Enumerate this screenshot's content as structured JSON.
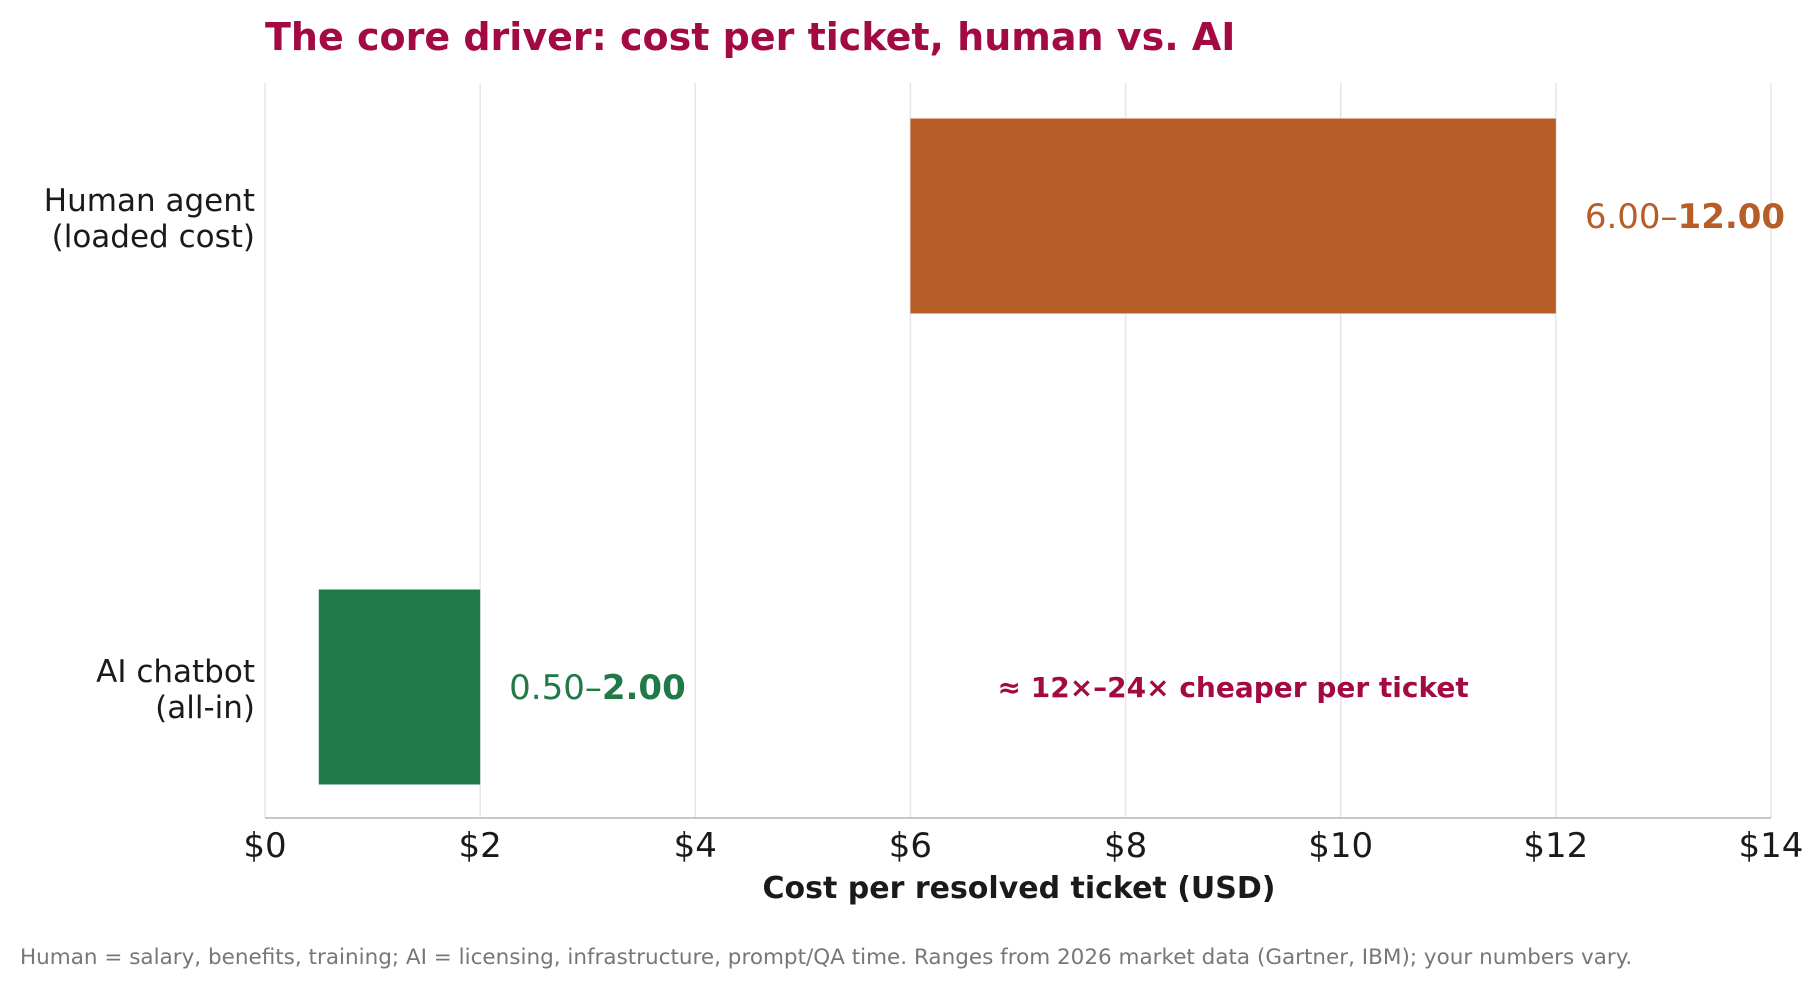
{
  "chart_data": {
    "type": "bar",
    "orientation": "horizontal",
    "title": "The core driver: cost per ticket, human vs. AI",
    "xlabel": "Cost per resolved ticket (USD)",
    "xlim": [
      0,
      14
    ],
    "xticks": [
      0,
      2,
      4,
      6,
      8,
      10,
      12,
      14
    ],
    "tick_prefix": "$",
    "grid": "vertical",
    "bars": [
      {
        "label_lines": [
          "Human agent",
          "(loaded cost)"
        ],
        "low": 6.0,
        "high": 12.0,
        "value_low_text": "6.00",
        "value_sep": "–",
        "value_high_text": "12.00",
        "color": "#b75d27"
      },
      {
        "label_lines": [
          "AI chatbot",
          "(all-in)"
        ],
        "low": 0.5,
        "high": 2.0,
        "value_low_text": "0.50",
        "value_sep": "–",
        "value_high_text": "2.00",
        "color": "#1f7a48"
      }
    ],
    "annotation": {
      "text": "≈ 12×–24× cheaper per ticket",
      "x": 9.0,
      "row": 1,
      "color": "#a30a43"
    },
    "footnote": "Human = salary, benefits, training; AI = licensing, infrastructure, prompt/QA time. Ranges from 2026 market data (Gartner, IBM); your numbers vary.",
    "colors": {
      "title": "#a30a43",
      "grid": "#e6e6e6",
      "axis": "#c8c8c8"
    }
  }
}
